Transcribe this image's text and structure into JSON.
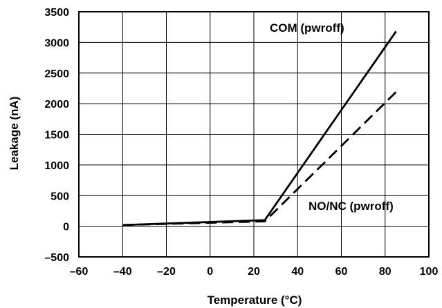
{
  "chart_data": {
    "type": "line",
    "title": "",
    "xlabel": "Temperature (°C)",
    "ylabel": "Leakage (nA)",
    "xlim": [
      -60,
      100
    ],
    "ylim": [
      -500,
      3500
    ],
    "x_ticks": [
      "–60",
      "–40",
      "–20",
      "0",
      "20",
      "40",
      "60",
      "80",
      "100"
    ],
    "y_ticks": [
      "3500",
      "3000",
      "2500",
      "2000",
      "1500",
      "1000",
      "500",
      "0",
      "–500"
    ],
    "x_tick_values": [
      -60,
      -40,
      -20,
      0,
      20,
      40,
      60,
      80,
      100
    ],
    "y_tick_values": [
      3500,
      3000,
      2500,
      2000,
      1500,
      1000,
      500,
      0,
      -500
    ],
    "grid": true,
    "legend": "none",
    "series": [
      {
        "name": "COM (pwroff)",
        "style": "solid",
        "color": "#000000",
        "x": [
          -40,
          25,
          85
        ],
        "y": [
          20,
          100,
          3180
        ]
      },
      {
        "name": "NO/NC (pwroff)",
        "style": "dashed",
        "color": "#000000",
        "x": [
          -40,
          25,
          85
        ],
        "y": [
          20,
          80,
          2190
        ]
      }
    ]
  }
}
